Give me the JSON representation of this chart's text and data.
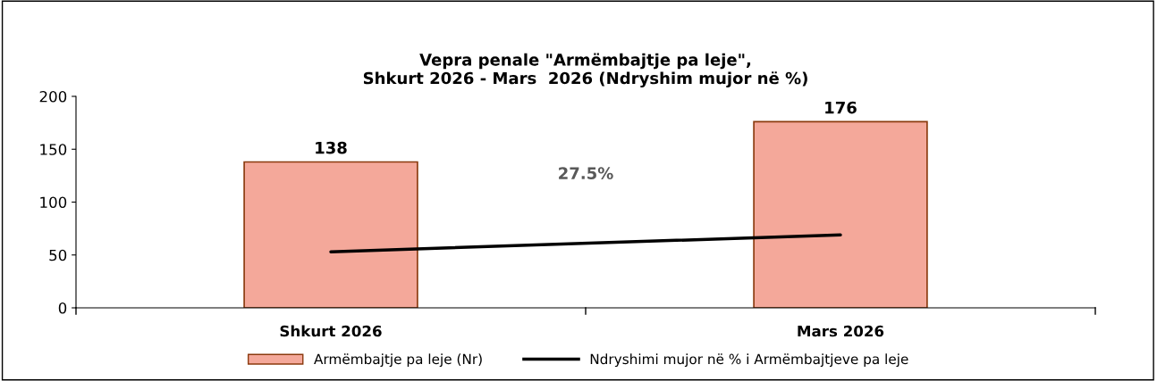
{
  "chart_data": {
    "type": "bar",
    "title": "Vepra penale \"Armëmbajtje pa leje\",\nShkurt 2026 - Mars  2026 (Ndryshim mujor në %)",
    "categories": [
      "Shkurt 2026",
      "Mars 2026"
    ],
    "series": [
      {
        "name": "Armëmbajtje pa leje (Nr)",
        "color": "#f4a89a",
        "values": [
          138,
          176
        ],
        "data_labels": true
      },
      {
        "name": "Ndryshimi mujor në % i Armëmbajtjeve pa leje",
        "type": "line",
        "color": "#000000",
        "values": [
          53,
          69
        ],
        "marker": "none",
        "line_style": "solid"
      }
    ],
    "ylim": [
      0,
      200
    ],
    "yticks": [
      0,
      50,
      100,
      150,
      200
    ],
    "grid": false,
    "legend": "bottom",
    "annotations": [
      "27.5%"
    ]
  }
}
